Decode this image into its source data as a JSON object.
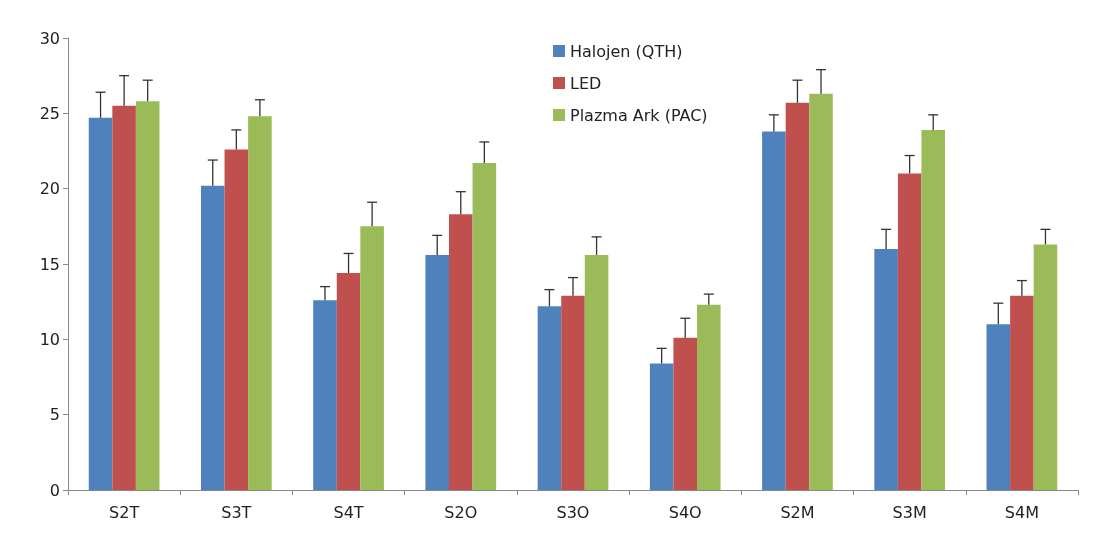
{
  "chart_data": {
    "type": "bar",
    "categories": [
      "S2T",
      "S3T",
      "S4T",
      "S2O",
      "S3O",
      "S4O",
      "S2M",
      "S3M",
      "S4M"
    ],
    "series": [
      {
        "name": "Halojen (QTH)",
        "color": "#4f81bd",
        "values": [
          24.7,
          20.2,
          12.6,
          15.6,
          12.2,
          8.4,
          23.8,
          16.0,
          11.0
        ],
        "errors": [
          [
            24.7,
            26.4
          ],
          [
            20.2,
            21.9
          ],
          [
            12.6,
            13.5
          ],
          [
            15.6,
            16.9
          ],
          [
            12.2,
            13.3
          ],
          [
            8.4,
            9.4
          ],
          [
            23.8,
            24.9
          ],
          [
            16.0,
            17.3
          ],
          [
            11.0,
            12.4
          ]
        ]
      },
      {
        "name": "LED",
        "color": "#c0504d",
        "values": [
          25.5,
          22.6,
          14.4,
          18.3,
          12.9,
          10.1,
          25.7,
          21.0,
          12.9
        ],
        "errors": [
          [
            25.5,
            27.5
          ],
          [
            22.6,
            23.9
          ],
          [
            14.4,
            15.7
          ],
          [
            18.3,
            19.8
          ],
          [
            12.9,
            14.1
          ],
          [
            10.1,
            11.4
          ],
          [
            25.7,
            27.2
          ],
          [
            21.0,
            22.2
          ],
          [
            12.9,
            13.9
          ]
        ]
      },
      {
        "name": "Plazma Ark (PAC)",
        "color": "#9bbb59",
        "values": [
          25.8,
          24.8,
          17.5,
          21.7,
          15.6,
          12.3,
          26.3,
          23.9,
          16.3
        ],
        "errors": [
          [
            25.8,
            27.2
          ],
          [
            24.8,
            25.9
          ],
          [
            17.5,
            19.1
          ],
          [
            21.7,
            23.1
          ],
          [
            15.6,
            16.8
          ],
          [
            12.3,
            13.0
          ],
          [
            26.3,
            27.9
          ],
          [
            23.9,
            24.9
          ],
          [
            16.3,
            17.3
          ]
        ]
      }
    ],
    "ylim": [
      0,
      30
    ],
    "yticks": [
      0,
      5,
      10,
      15,
      20,
      25,
      30
    ],
    "grid": false,
    "legend": "top"
  }
}
